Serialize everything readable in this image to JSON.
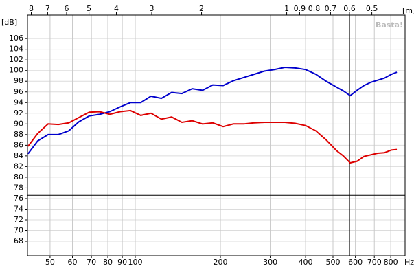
{
  "chart_data": {
    "type": "line",
    "y_label": "[dB]",
    "x_label": "Hz",
    "x2_label": "[m]",
    "watermark": "Basta!",
    "log_x": true,
    "grid": true,
    "xlim": [
      41.6,
      899
    ],
    "x2lim": [
      8.25,
      0.3815
    ],
    "ylim": [
      65.3,
      110.4
    ],
    "xticks": [
      50,
      60,
      70,
      80,
      90,
      100,
      200,
      300,
      400,
      500,
      600,
      700,
      800
    ],
    "x2ticks": [
      8,
      7,
      6,
      5,
      4,
      3,
      2,
      1,
      0.9,
      0.8,
      0.7,
      0.6,
      0.5
    ],
    "yticks": [
      68,
      70,
      72,
      74,
      76,
      78,
      80,
      82,
      84,
      86,
      88,
      90,
      92,
      94,
      96,
      98,
      100,
      102,
      104,
      106
    ],
    "reference_y": 76.6,
    "cursor_x": 572,
    "x": [
      41.8,
      45.2,
      49.2,
      53.5,
      58.2,
      63.2,
      68.8,
      74.8,
      81.3,
      88.4,
      96.2,
      104.6,
      113.7,
      123.7,
      134.5,
      146.2,
      159.0,
      172.9,
      188.0,
      204.5,
      222.4,
      241.8,
      263.0,
      286.0,
      311.0,
      338.1,
      367.8,
      399.9,
      434.9,
      473.0,
      514.3,
      543.8,
      575.1,
      608.1,
      643.1,
      680.1,
      719.2,
      760.5,
      804.2,
      841.1
    ],
    "series": [
      {
        "color": "#0000cc",
        "values": [
          84.4,
          86.8,
          88.0,
          88.0,
          88.7,
          90.4,
          91.5,
          91.8,
          92.3,
          93.2,
          94.0,
          94.0,
          95.2,
          94.8,
          95.9,
          95.7,
          96.6,
          96.3,
          97.3,
          97.2,
          98.1,
          98.7,
          99.3,
          99.9,
          100.2,
          100.6,
          100.5,
          100.2,
          99.3,
          98.0,
          96.9,
          96.2,
          95.3,
          96.3,
          97.2,
          97.8,
          98.2,
          98.6,
          99.3,
          99.7
        ]
      },
      {
        "color": "#dd0000",
        "values": [
          85.8,
          88.2,
          90.0,
          89.9,
          90.2,
          91.2,
          92.2,
          92.3,
          91.8,
          92.3,
          92.5,
          91.6,
          92.0,
          90.9,
          91.3,
          90.3,
          90.6,
          90.0,
          90.2,
          89.5,
          90.0,
          90.0,
          90.2,
          90.3,
          90.3,
          90.3,
          90.1,
          89.7,
          88.7,
          87.0,
          85.0,
          84.0,
          82.7,
          83.0,
          83.9,
          84.2,
          84.5,
          84.6,
          85.1,
          85.2
        ]
      }
    ]
  }
}
